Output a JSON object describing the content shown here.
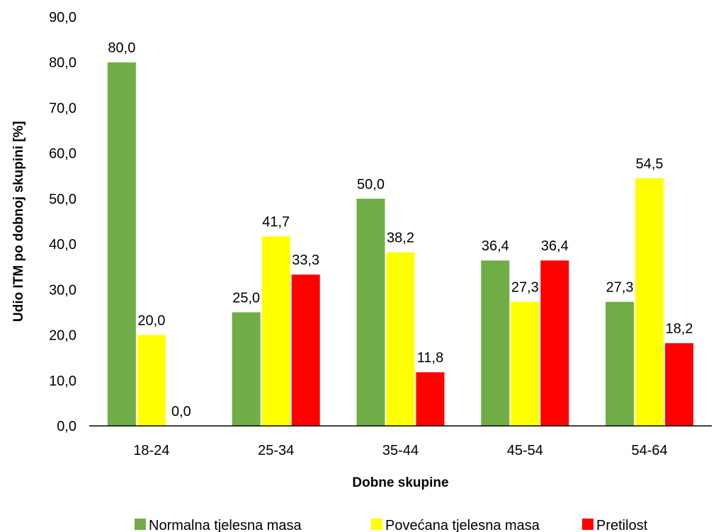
{
  "chart_data": {
    "type": "bar",
    "xlabel": "Dobne skupine",
    "ylabel": "Udio ITM po dobnoj skupini [%]",
    "categories": [
      "18-24",
      "25-34",
      "35-44",
      "45-54",
      "54-64"
    ],
    "ylim": [
      0,
      90
    ],
    "ytick_step": 10,
    "ytick_labels": [
      "0,0",
      "10,0",
      "20,0",
      "30,0",
      "40,0",
      "50,0",
      "60,0",
      "70,0",
      "80,0",
      "90,0"
    ],
    "grid": false,
    "legend_position": "bottom",
    "series": [
      {
        "name": "Normalna tjelesna masa",
        "color": "#70AD47",
        "values": [
          80.0,
          25.0,
          50.0,
          36.4,
          27.3
        ],
        "labels": [
          "80,0",
          "25,0",
          "50,0",
          "36,4",
          "27,3"
        ]
      },
      {
        "name": "Povećana tjelesna masa",
        "color": "#FFFF00",
        "values": [
          20.0,
          41.7,
          38.2,
          27.3,
          54.5
        ],
        "labels": [
          "20,0",
          "41,7",
          "38,2",
          "27,3",
          "54,5"
        ]
      },
      {
        "name": "Pretilost",
        "color": "#FF0000",
        "values": [
          0.0,
          33.3,
          11.8,
          36.4,
          18.2
        ],
        "labels": [
          "0,0",
          "33,3",
          "11,8",
          "36,4",
          "18,2"
        ]
      }
    ]
  }
}
